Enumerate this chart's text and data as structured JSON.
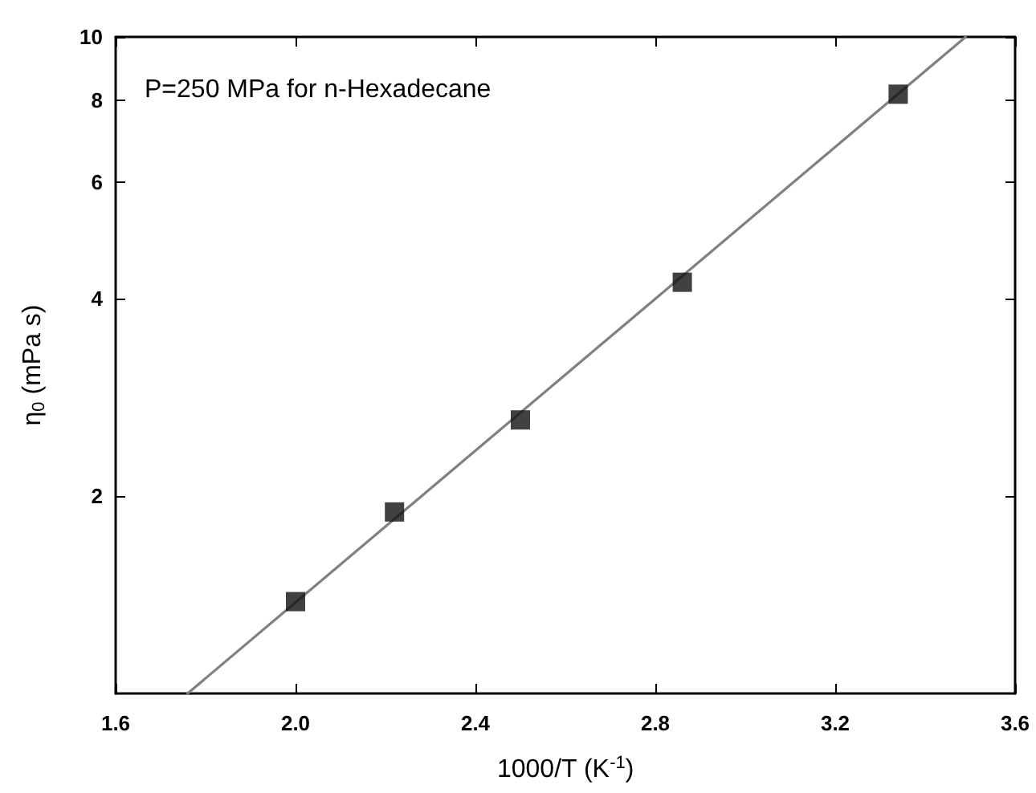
{
  "chart_data": {
    "type": "scatter",
    "xlabel": "1000/T (K$^{-1}$)",
    "ylabel": "η$_{0}$ (mPa s)",
    "annotations": [
      "P=250 MPa for n-Hexadecane"
    ],
    "xlim": [
      1.6,
      3.6
    ],
    "xticks": [
      {
        "value": 1.6,
        "label": "1.6"
      },
      {
        "value": 2,
        "label": "2.0"
      },
      {
        "value": 2.4,
        "label": "2.4"
      },
      {
        "value": 2.8,
        "label": "2.8"
      },
      {
        "value": 3.2,
        "label": "3.2"
      },
      {
        "value": 3.6,
        "label": "3.6"
      }
    ],
    "ylim": [
      1,
      10
    ],
    "yticks": [
      2,
      4,
      6,
      8,
      10
    ],
    "log": "y",
    "grid": false,
    "series": [
      {
        "x": [
          2.0,
          2.22,
          2.5,
          2.86,
          3.34
        ],
        "values": [
          1.38,
          1.89,
          2.61,
          4.23,
          8.18
        ],
        "color": "#111111",
        "marker": "square"
      },
      {
        "type": "line",
        "x": [
          1.76,
          3.49
        ],
        "values": [
          1,
          10
        ],
        "color": "#808080",
        "marker": "none",
        "line_style": "solid"
      }
    ]
  }
}
